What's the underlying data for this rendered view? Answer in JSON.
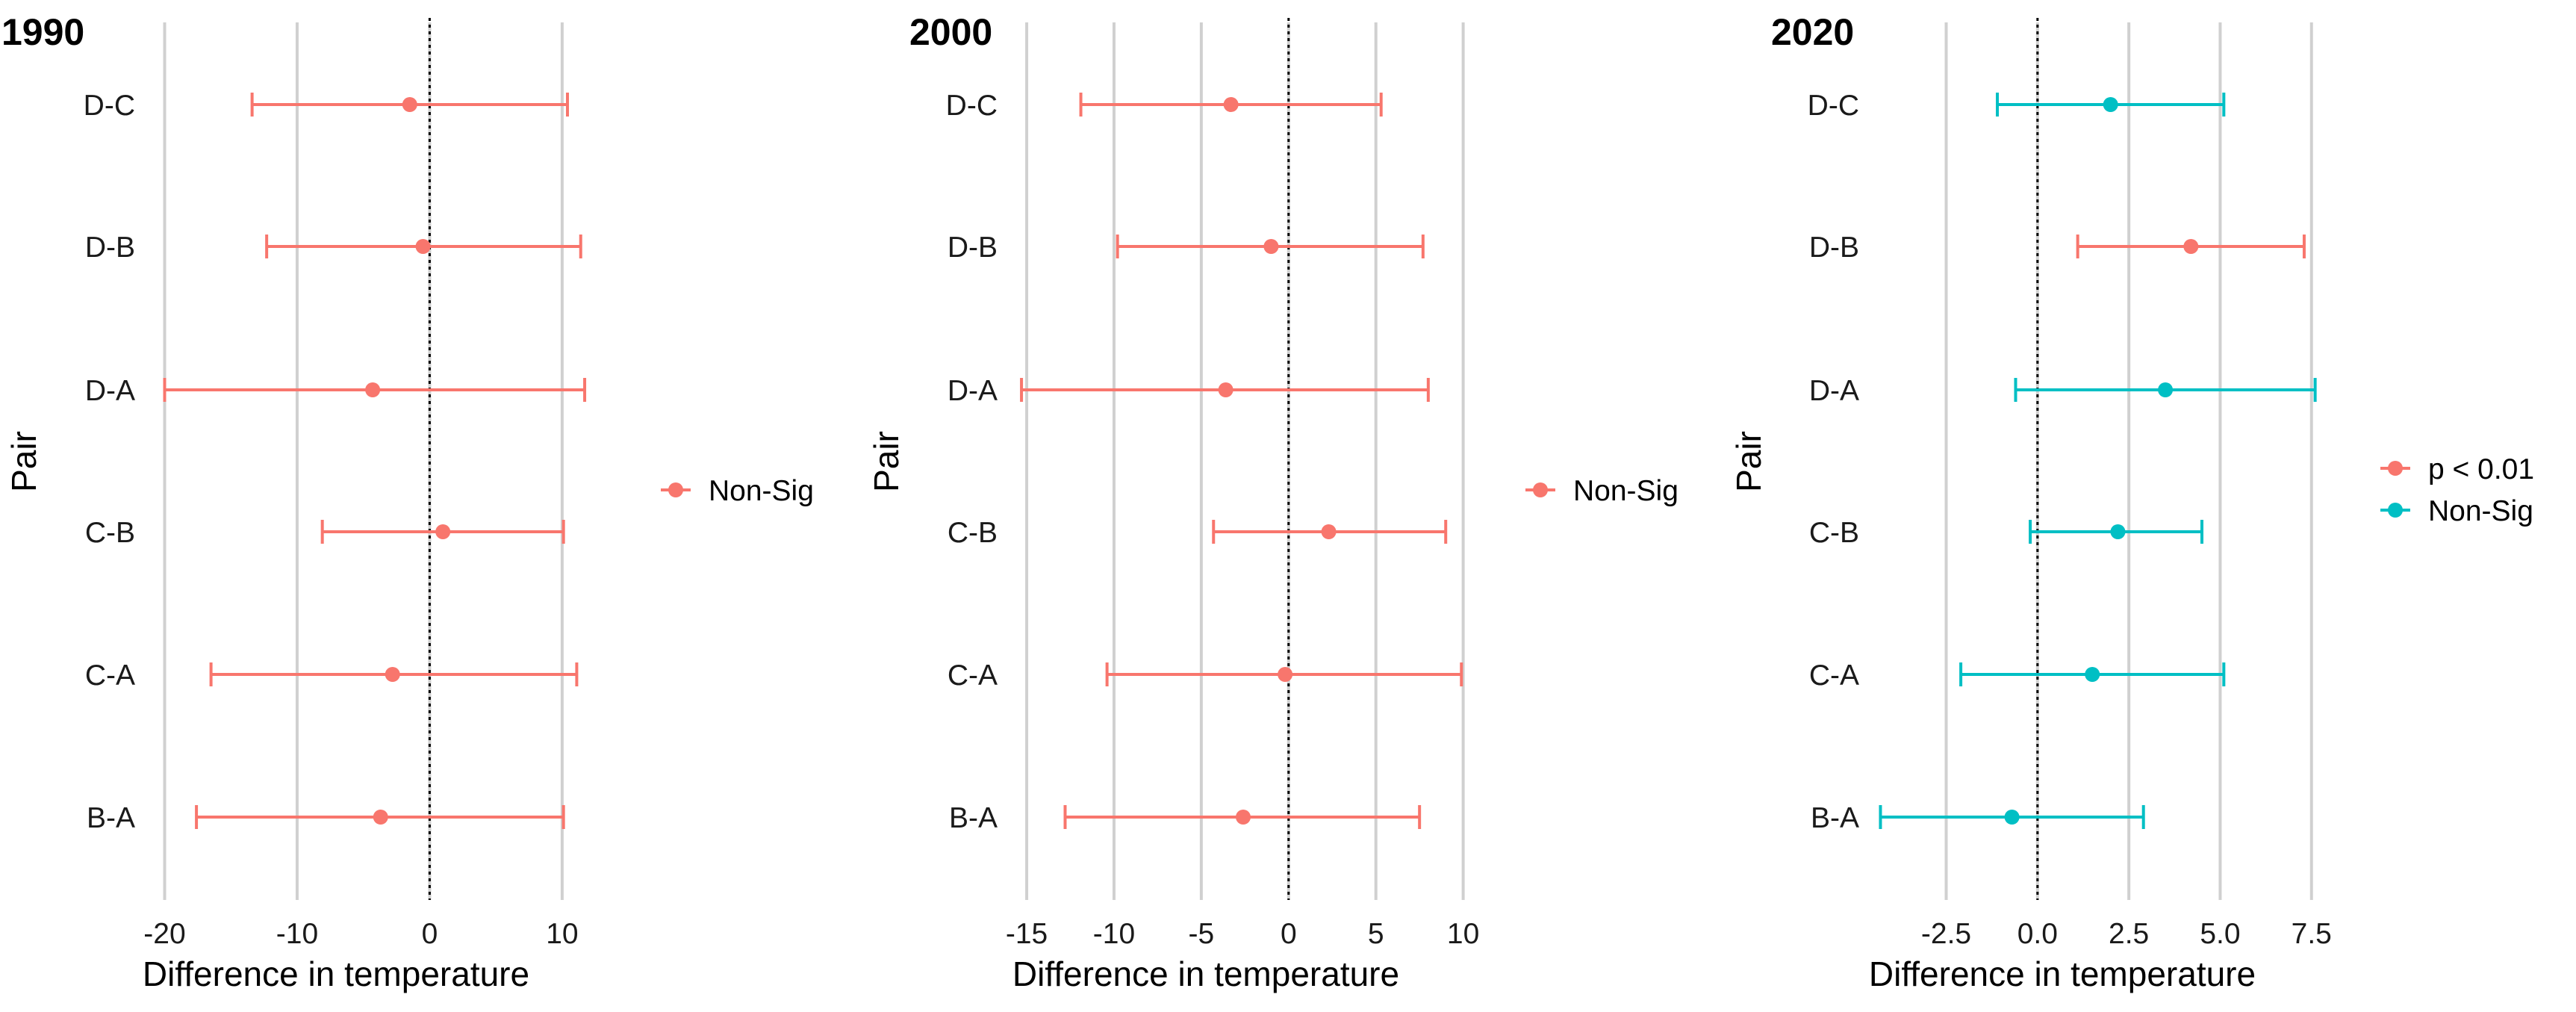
{
  "figure": {
    "background": "#ffffff",
    "gridline_color": "#d0d0d0",
    "zero_line_color": "#000000"
  },
  "chart_data": [
    {
      "type": "scatter",
      "title": "1990",
      "xlabel": "Difference in temperature",
      "ylabel": "Pair",
      "xlim": [
        -22,
        13.5
      ],
      "xticks": [
        -20,
        -10,
        0,
        10
      ],
      "xtick_labels": [
        "-20",
        "-10",
        "0",
        "10"
      ],
      "categories": [
        "B-A",
        "C-A",
        "C-B",
        "D-A",
        "D-B",
        "D-C"
      ],
      "points": [
        {
          "pair": "D-C",
          "estimate": -1.5,
          "lower": -13.4,
          "upper": 10.4,
          "group": "Non-Sig"
        },
        {
          "pair": "D-B",
          "estimate": -0.5,
          "lower": -12.3,
          "upper": 11.4,
          "group": "Non-Sig"
        },
        {
          "pair": "D-A",
          "estimate": -4.3,
          "lower": -20.0,
          "upper": 11.7,
          "group": "Non-Sig"
        },
        {
          "pair": "C-B",
          "estimate": 1.0,
          "lower": -8.1,
          "upper": 10.1,
          "group": "Non-Sig"
        },
        {
          "pair": "C-A",
          "estimate": -2.8,
          "lower": -16.5,
          "upper": 11.1,
          "group": "Non-Sig"
        },
        {
          "pair": "B-A",
          "estimate": -3.7,
          "lower": -17.6,
          "upper": 10.1,
          "group": "Non-Sig"
        }
      ],
      "legend": [
        {
          "label": "Non-Sig",
          "color": "#F8766D"
        }
      ],
      "legend_position": "right",
      "grid": true,
      "zero_line": "dotted"
    },
    {
      "type": "scatter",
      "title": "2000",
      "xlabel": "Difference in temperature",
      "ylabel": "Pair",
      "xlim": [
        -16.5,
        11.3
      ],
      "xticks": [
        -15,
        -10,
        -5,
        0,
        5,
        10
      ],
      "xtick_labels": [
        "-15",
        "-10",
        "-5",
        "0",
        "5",
        "10"
      ],
      "categories": [
        "B-A",
        "C-A",
        "C-B",
        "D-A",
        "D-B",
        "D-C"
      ],
      "points": [
        {
          "pair": "D-C",
          "estimate": -3.3,
          "lower": -11.9,
          "upper": 5.3,
          "group": "Non-Sig"
        },
        {
          "pair": "D-B",
          "estimate": -1.0,
          "lower": -9.8,
          "upper": 7.7,
          "group": "Non-Sig"
        },
        {
          "pair": "D-A",
          "estimate": -3.6,
          "lower": -15.3,
          "upper": 8.0,
          "group": "Non-Sig"
        },
        {
          "pair": "C-B",
          "estimate": 2.3,
          "lower": -4.3,
          "upper": 9.0,
          "group": "Non-Sig"
        },
        {
          "pair": "C-A",
          "estimate": -0.2,
          "lower": -10.4,
          "upper": 9.9,
          "group": "Non-Sig"
        },
        {
          "pair": "B-A",
          "estimate": -2.6,
          "lower": -12.8,
          "upper": 7.5,
          "group": "Non-Sig"
        }
      ],
      "legend": [
        {
          "label": "Non-Sig",
          "color": "#F8766D"
        }
      ],
      "legend_position": "right",
      "grid": true,
      "zero_line": "dotted"
    },
    {
      "type": "scatter",
      "title": "2020",
      "xlabel": "Difference in temperature",
      "ylabel": "Pair",
      "xlim": [
        -4.8,
        8.2
      ],
      "xticks": [
        -2.5,
        0,
        2.5,
        5,
        7.5
      ],
      "xtick_labels": [
        "-2.5",
        "0.0",
        "2.5",
        "5.0",
        "7.5"
      ],
      "categories": [
        "B-A",
        "C-A",
        "C-B",
        "D-A",
        "D-B",
        "D-C"
      ],
      "points": [
        {
          "pair": "D-C",
          "estimate": 2.0,
          "lower": -1.1,
          "upper": 5.1,
          "group": "Non-Sig"
        },
        {
          "pair": "D-B",
          "estimate": 4.2,
          "lower": 1.1,
          "upper": 7.3,
          "group": "p < 0.01"
        },
        {
          "pair": "D-A",
          "estimate": 3.5,
          "lower": -0.6,
          "upper": 7.6,
          "group": "Non-Sig"
        },
        {
          "pair": "C-B",
          "estimate": 2.2,
          "lower": -0.2,
          "upper": 4.5,
          "group": "Non-Sig"
        },
        {
          "pair": "C-A",
          "estimate": 1.5,
          "lower": -2.1,
          "upper": 5.1,
          "group": "Non-Sig"
        },
        {
          "pair": "B-A",
          "estimate": -0.7,
          "lower": -4.3,
          "upper": 2.9,
          "group": "Non-Sig"
        }
      ],
      "legend": [
        {
          "label": "p < 0.01",
          "color": "#F8766D"
        },
        {
          "label": "Non-Sig",
          "color": "#00BFC4"
        }
      ],
      "legend_position": "right",
      "grid": true,
      "zero_line": "dotted"
    }
  ]
}
